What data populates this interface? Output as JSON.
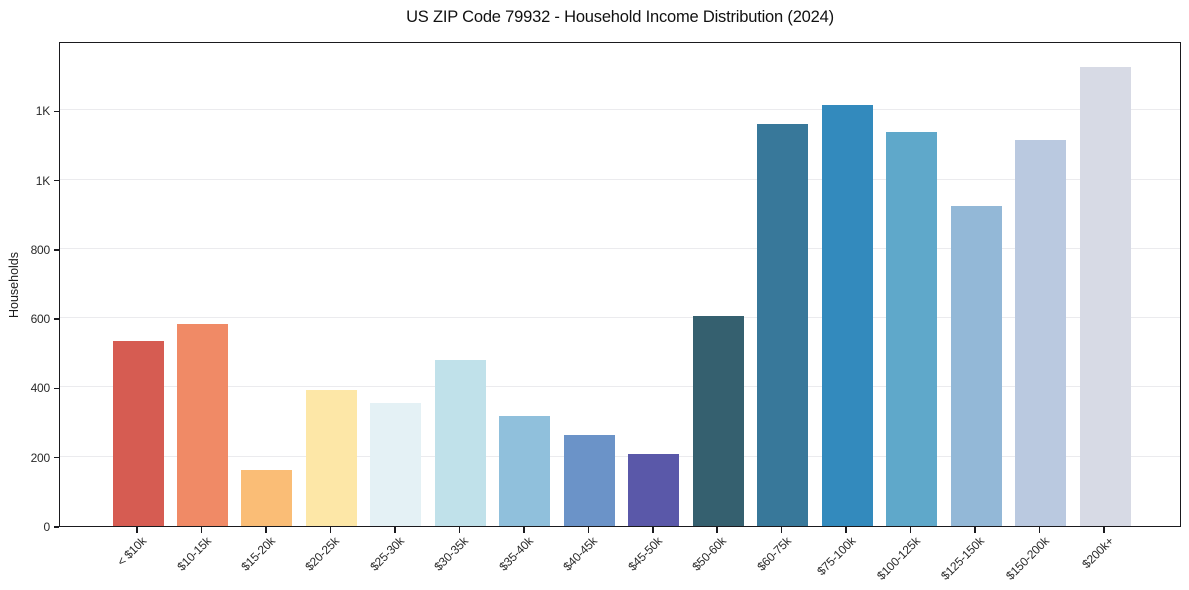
{
  "chart_data": {
    "type": "bar",
    "title": "US ZIP Code 79932 - Household Income Distribution (2024)",
    "xlabel": "",
    "ylabel": "Households",
    "categories": [
      "< $10k",
      "$10-15k",
      "$15-20k",
      "$20-25k",
      "$25-30k",
      "$30-35k",
      "$35-40k",
      "$40-45k",
      "$45-50k",
      "$50-60k",
      "$60-75k",
      "$75-100k",
      "$100-125k",
      "$125-150k",
      "$150-200k",
      "$200k+"
    ],
    "values": [
      535,
      583,
      162,
      393,
      355,
      479,
      317,
      263,
      208,
      606,
      1160,
      1215,
      1137,
      924,
      1114,
      1325
    ],
    "bar_colors": [
      "#d65c52",
      "#f08a66",
      "#fabd76",
      "#fde7a7",
      "#e4f1f5",
      "#c0e1ea",
      "#90c0dc",
      "#6b93c8",
      "#5a58a9",
      "#35606f",
      "#38789a",
      "#338abd",
      "#5fa8ca",
      "#93b8d7",
      "#bac9e0",
      "#d7dae5"
    ],
    "ylim": [
      0,
      1400
    ],
    "yticks": [
      {
        "value": 0,
        "label": "0"
      },
      {
        "value": 200,
        "label": "200"
      },
      {
        "value": 400,
        "label": "400"
      },
      {
        "value": 600,
        "label": "600"
      },
      {
        "value": 800,
        "label": "800"
      },
      {
        "value": 1000,
        "label": "1K"
      },
      {
        "value": 1200,
        "label": "1K"
      }
    ],
    "grid": "horizontal-only",
    "legend": "none",
    "xtick_rotation_deg": 45
  },
  "colors": {
    "background": "#ffffff",
    "spine": "#1a1a1e",
    "grid": "#ebebee",
    "title_text": "#111111",
    "tick_text": "#2a2a2a"
  }
}
